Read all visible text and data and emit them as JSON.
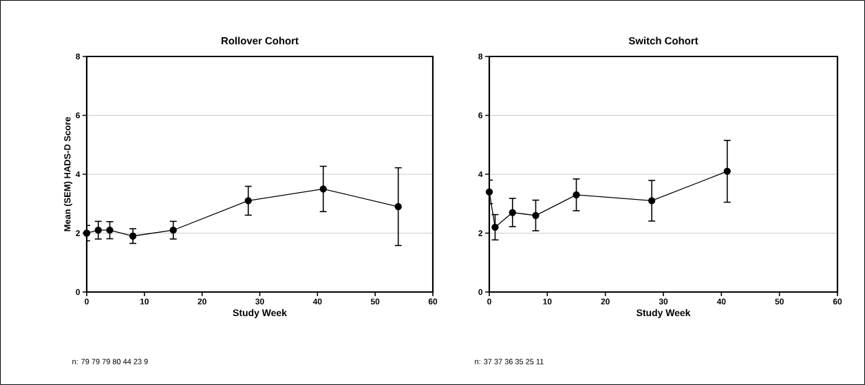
{
  "chart_data": [
    {
      "type": "line",
      "title": "Rollover Cohort",
      "xlabel": "Study Week",
      "ylabel": "Mean (SEM) HADS-D Score",
      "x": [
        0,
        2,
        4,
        8,
        15,
        28,
        41,
        54
      ],
      "values": [
        2.0,
        2.1,
        2.1,
        1.9,
        2.1,
        3.1,
        3.5,
        2.9
      ],
      "errors": [
        0.26,
        0.3,
        0.29,
        0.25,
        0.3,
        0.49,
        0.77,
        1.32
      ],
      "color": "#000000",
      "marker": "circle",
      "grid": "y",
      "xlim": [
        0,
        60
      ],
      "xticks": [
        0,
        10,
        20,
        30,
        40,
        50,
        60
      ],
      "ylim": [
        0,
        8
      ],
      "yticks": [
        0,
        2,
        4,
        6,
        8
      ],
      "annotations": [
        "n: 79 79 79 80 44 23 9"
      ]
    },
    {
      "type": "line",
      "title": "Switch Cohort",
      "xlabel": "Study Week",
      "x": [
        0,
        1,
        4,
        8,
        15,
        28,
        41
      ],
      "values": [
        3.4,
        2.2,
        2.7,
        2.6,
        3.3,
        3.1,
        4.1
      ],
      "errors": [
        0.4,
        0.43,
        0.48,
        0.52,
        0.54,
        0.69,
        1.05
      ],
      "color": "#000000",
      "marker": "circle",
      "grid": "y",
      "xlim": [
        0,
        60
      ],
      "xticks": [
        0,
        10,
        20,
        30,
        40,
        50,
        60
      ],
      "ylim": [
        0,
        8
      ],
      "yticks": [
        0,
        2,
        4,
        6,
        8
      ],
      "annotations": [
        "n: 37 37 36 35 25 11"
      ]
    }
  ]
}
